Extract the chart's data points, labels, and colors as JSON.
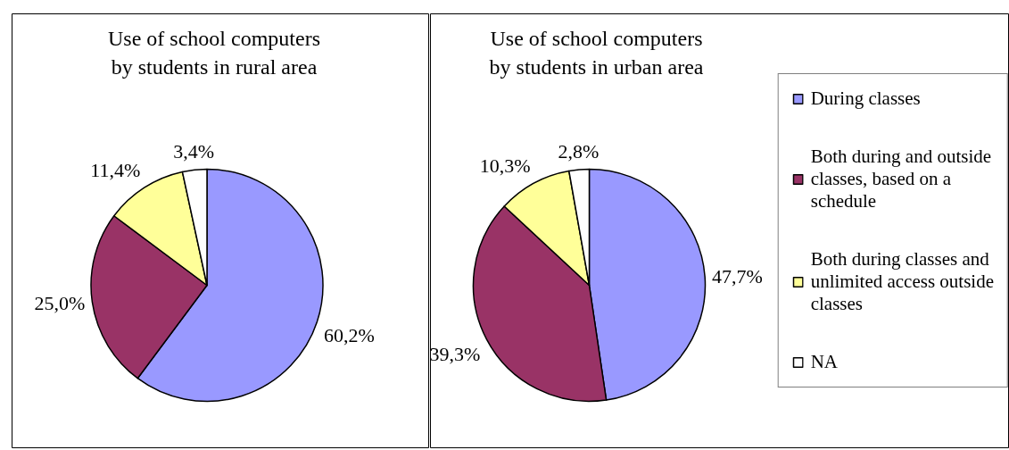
{
  "chart_data": [
    {
      "type": "pie",
      "title": "Use of school computers by students in rural area",
      "categories": [
        null,
        null,
        null,
        null
      ],
      "values": [
        60.2,
        25.0,
        11.4,
        3.4
      ],
      "colors": [
        "#9999ff",
        "#993366",
        "#ffff99",
        "#ffffff"
      ],
      "value_labels": [
        "60,2%",
        "25,0%",
        "11,4%",
        "3,4%"
      ]
    },
    {
      "type": "pie",
      "title": "Use of school computers by students in urban area",
      "categories": [
        "During classes",
        "Both during and outside classes, based on a schedule",
        "Both during classes and unlimited access outside classes",
        "NA"
      ],
      "values": [
        47.7,
        39.3,
        10.3,
        2.8
      ],
      "colors": [
        "#9999ff",
        "#993366",
        "#ffff99",
        "#ffffff"
      ],
      "value_labels": [
        "47,7%",
        "39,3%",
        "10,3%",
        "2,8%"
      ],
      "legend": "right"
    }
  ]
}
